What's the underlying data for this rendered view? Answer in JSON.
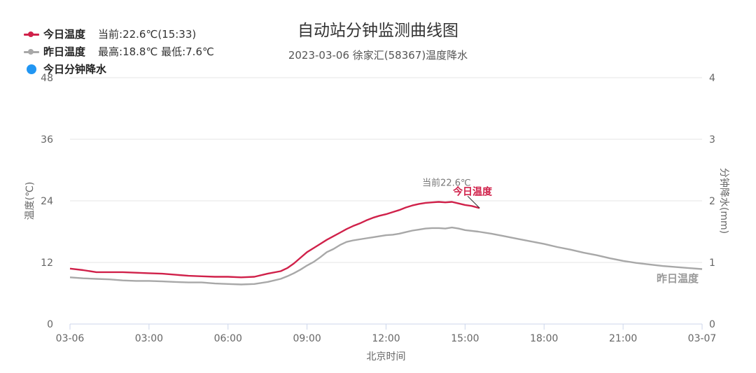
{
  "title": "自动站分钟监测曲线图",
  "subtitle": "2023-03-06 徐家汇(58367)温度降水",
  "legend": {
    "today": {
      "name": "今日温度",
      "info": "当前:22.6℃(15:33)",
      "color": "#d0214a"
    },
    "yesterday": {
      "name": "昨日温度",
      "info": "最高:18.8℃ 最低:7.6℃",
      "color": "#a8a8a8"
    },
    "precip": {
      "name": "今日分钟降水",
      "color": "#2196f3"
    }
  },
  "chart_data": {
    "type": "line",
    "title": "自动站分钟监测曲线图",
    "subtitle": "2023-03-06 徐家汇(58367)温度降水",
    "xlabel": "北京时间",
    "ylabel": "温度(℃)",
    "y2label": "分钟降水(mm)",
    "xlim": [
      0,
      24
    ],
    "ylim": [
      0,
      48
    ],
    "y2lim": [
      0,
      4
    ],
    "x_ticks": [
      "03-06",
      "03:00",
      "06:00",
      "09:00",
      "12:00",
      "15:00",
      "18:00",
      "21:00",
      "03-07"
    ],
    "y_ticks": [
      "0",
      "12",
      "24",
      "36",
      "48"
    ],
    "y2_ticks": [
      "0",
      "1",
      "2",
      "3",
      "4"
    ],
    "grid": true,
    "legend_position": "top-left",
    "series": [
      {
        "name": "今日温度",
        "color": "#d0214a",
        "x": [
          0,
          0.5,
          1,
          1.5,
          2,
          2.5,
          3,
          3.5,
          4,
          4.5,
          5,
          5.5,
          6,
          6.5,
          7,
          7.5,
          8,
          8.25,
          8.5,
          8.75,
          9,
          9.25,
          9.5,
          9.75,
          10,
          10.25,
          10.5,
          10.75,
          11,
          11.25,
          11.5,
          11.75,
          12,
          12.25,
          12.5,
          12.75,
          13,
          13.25,
          13.5,
          13.75,
          14,
          14.25,
          14.5,
          14.75,
          15,
          15.25,
          15.55
        ],
        "y": [
          10.8,
          10.5,
          10.1,
          10.1,
          10.1,
          10.0,
          9.9,
          9.8,
          9.6,
          9.4,
          9.3,
          9.2,
          9.2,
          9.1,
          9.2,
          9.8,
          10.3,
          10.9,
          11.8,
          12.9,
          14.0,
          14.8,
          15.6,
          16.4,
          17.1,
          17.8,
          18.5,
          19.1,
          19.6,
          20.2,
          20.7,
          21.1,
          21.4,
          21.8,
          22.2,
          22.7,
          23.1,
          23.4,
          23.6,
          23.7,
          23.8,
          23.7,
          23.8,
          23.5,
          23.2,
          23.0,
          22.6
        ]
      },
      {
        "name": "昨日温度",
        "color": "#a8a8a8",
        "x": [
          0,
          0.5,
          1,
          1.5,
          2,
          2.5,
          3,
          3.5,
          4,
          4.5,
          5,
          5.5,
          6,
          6.5,
          7,
          7.5,
          8,
          8.25,
          8.5,
          8.75,
          9,
          9.25,
          9.5,
          9.75,
          10,
          10.25,
          10.5,
          10.75,
          11,
          11.25,
          11.5,
          11.75,
          12,
          12.25,
          12.5,
          12.75,
          13,
          13.25,
          13.5,
          13.75,
          14,
          14.25,
          14.5,
          14.75,
          15,
          15.5,
          16,
          16.5,
          17,
          17.5,
          18,
          18.5,
          19,
          19.5,
          20,
          20.5,
          21,
          21.5,
          22,
          22.5,
          23,
          23.5,
          24
        ],
        "y": [
          9.1,
          8.9,
          8.8,
          8.7,
          8.5,
          8.4,
          8.4,
          8.3,
          8.2,
          8.1,
          8.1,
          7.9,
          7.8,
          7.7,
          7.8,
          8.2,
          8.8,
          9.3,
          9.9,
          10.6,
          11.4,
          12.1,
          13.0,
          14.0,
          14.6,
          15.4,
          16.0,
          16.3,
          16.5,
          16.7,
          16.9,
          17.1,
          17.3,
          17.4,
          17.6,
          17.9,
          18.2,
          18.4,
          18.6,
          18.7,
          18.7,
          18.6,
          18.8,
          18.6,
          18.3,
          18.0,
          17.6,
          17.1,
          16.6,
          16.1,
          15.6,
          15.0,
          14.5,
          13.9,
          13.4,
          12.8,
          12.3,
          11.9,
          11.6,
          11.3,
          11.1,
          10.9,
          10.7
        ]
      },
      {
        "name": "今日分钟降水",
        "color": "#2196f3",
        "x": [],
        "y": []
      }
    ],
    "annotations": {
      "current_text": "当前22.6℃",
      "current_point": {
        "x": 15.55,
        "y": 22.6
      },
      "today_label": "今日温度",
      "yesterday_label": "昨日温度"
    }
  }
}
